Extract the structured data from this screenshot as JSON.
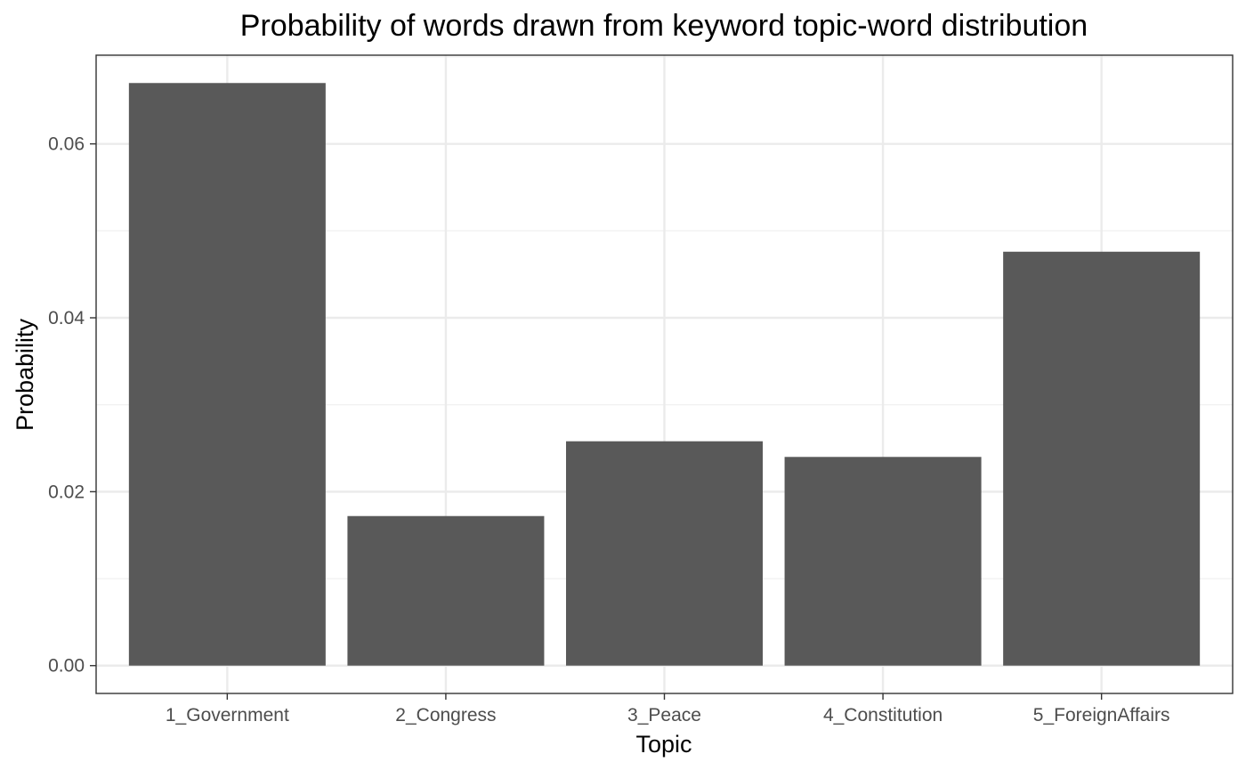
{
  "chart_data": {
    "type": "bar",
    "title": "Probability of words drawn from keyword topic-word distribution",
    "xlabel": "Topic",
    "ylabel": "Probability",
    "categories": [
      "1_Government",
      "2_Congress",
      "3_Peace",
      "4_Constitution",
      "5_ForeignAffairs"
    ],
    "values": [
      0.067,
      0.0172,
      0.0258,
      0.024,
      0.0476
    ],
    "ylim": [
      -0.0032,
      0.0702
    ],
    "yticks": [
      0.0,
      0.02,
      0.04,
      0.06
    ],
    "ytick_labels": [
      "0.00",
      "0.02",
      "0.04",
      "0.06"
    ],
    "grid": true,
    "legend": "none",
    "colors": {
      "bar": "#595959",
      "panel_border": "#333333",
      "grid_major": "#ebebeb",
      "grid_minor": "#f2f2f2",
      "tick_text": "#4d4d4d",
      "tick_mark": "#333333"
    }
  }
}
